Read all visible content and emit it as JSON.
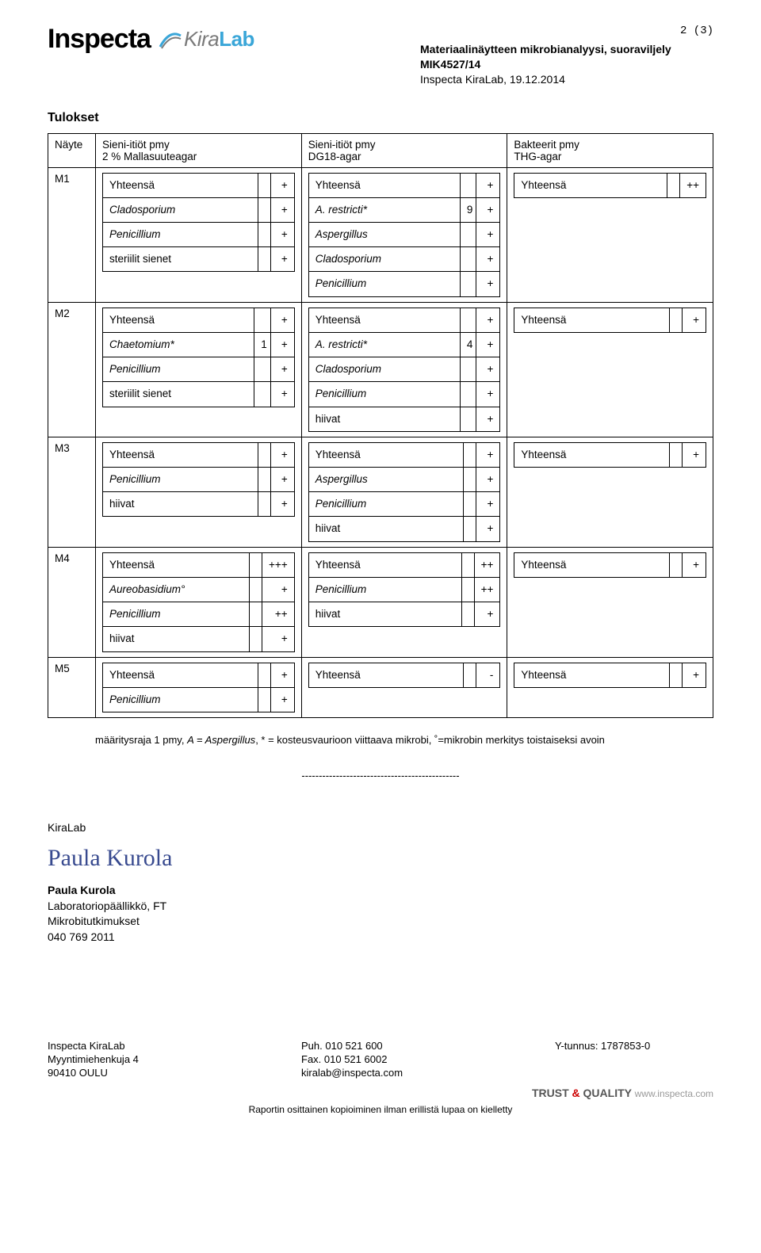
{
  "page_counter": "2 (3)",
  "header": {
    "title_line1": "Materiaalinäytteen mikrobianalyysi, suoraviljely",
    "title_line2": "MIK4527/14",
    "title_line3": "Inspecta KiraLab, 19.12.2014"
  },
  "logos": {
    "inspecta": "Inspecta",
    "kiralab_kira": "Kira",
    "kiralab_lab": "Lab"
  },
  "section_title": "Tulokset",
  "table": {
    "head": {
      "sample": "Näyte",
      "col1a": "Sieni-itiöt pmy",
      "col1b": "2 % Mallasuuteagar",
      "col2a": "Sieni-itiöt pmy",
      "col2b": "DG18-agar",
      "col3a": "Bakteerit pmy",
      "col3b": "THG-agar"
    },
    "rows": [
      {
        "id": "M1",
        "c1": [
          {
            "label": "Yhteensä",
            "val": "+"
          },
          {
            "label": "Cladosporium",
            "italic": true,
            "val": "+"
          },
          {
            "label": "Penicillium",
            "italic": true,
            "val": "+"
          },
          {
            "label": "steriilit sienet",
            "val": "+"
          }
        ],
        "c2": [
          {
            "label": "Yhteensä",
            "val": "+"
          },
          {
            "label": "A. restricti*",
            "italic": true,
            "cnt": "9",
            "val": "+"
          },
          {
            "label": "Aspergillus",
            "italic": true,
            "val": "+"
          },
          {
            "label": "Cladosporium",
            "italic": true,
            "val": "+"
          },
          {
            "label": "Penicillium",
            "italic": true,
            "val": "+"
          }
        ],
        "c3": [
          {
            "label": "Yhteensä",
            "val": "++"
          }
        ]
      },
      {
        "id": "M2",
        "c1": [
          {
            "label": "Yhteensä",
            "val": "+"
          },
          {
            "label": "Chaetomium*",
            "italic": true,
            "cnt": "1",
            "val": "+"
          },
          {
            "label": "Penicillium",
            "italic": true,
            "val": "+"
          },
          {
            "label": "steriilit sienet",
            "val": "+"
          }
        ],
        "c2": [
          {
            "label": "Yhteensä",
            "val": "+"
          },
          {
            "label": "A. restricti*",
            "italic": true,
            "cnt": "4",
            "val": "+"
          },
          {
            "label": "Cladosporium",
            "italic": true,
            "val": "+"
          },
          {
            "label": "Penicillium",
            "italic": true,
            "val": "+"
          },
          {
            "label": "hiivat",
            "val": "+"
          }
        ],
        "c3": [
          {
            "label": "Yhteensä",
            "val": "+"
          }
        ]
      },
      {
        "id": "M3",
        "c1": [
          {
            "label": "Yhteensä",
            "val": "+"
          },
          {
            "label": "Penicillium",
            "italic": true,
            "val": "+"
          },
          {
            "label": "hiivat",
            "val": "+"
          }
        ],
        "c2": [
          {
            "label": "Yhteensä",
            "val": "+"
          },
          {
            "label": "Aspergillus",
            "italic": true,
            "val": "+"
          },
          {
            "label": "Penicillium",
            "italic": true,
            "val": "+"
          },
          {
            "label": "hiivat",
            "val": "+"
          }
        ],
        "c3": [
          {
            "label": "Yhteensä",
            "val": "+"
          }
        ]
      },
      {
        "id": "M4",
        "c1": [
          {
            "label": "Yhteensä",
            "val": "+++"
          },
          {
            "label": "Aureobasidium°",
            "italic": true,
            "val": "+"
          },
          {
            "label": "Penicillium",
            "italic": true,
            "val": "++"
          },
          {
            "label": "hiivat",
            "val": "+"
          }
        ],
        "c2": [
          {
            "label": "Yhteensä",
            "val": "++"
          },
          {
            "label": "Penicillium",
            "italic": true,
            "val": "++"
          },
          {
            "label": "hiivat",
            "val": "+"
          }
        ],
        "c3": [
          {
            "label": "Yhteensä",
            "val": "+"
          }
        ]
      },
      {
        "id": "M5",
        "c1": [
          {
            "label": "Yhteensä",
            "val": "+"
          },
          {
            "label": "Penicillium",
            "italic": true,
            "val": "+"
          }
        ],
        "c2": [
          {
            "label": "Yhteensä",
            "val": "-"
          }
        ],
        "c3": [
          {
            "label": "Yhteensä",
            "val": "+"
          }
        ]
      }
    ]
  },
  "footnote": "määritysraja 1 pmy, A = Aspergillus, * = kosteusvaurioon viittaava mikrobi, ° =mikrobin merkitys toistaiseksi avoin",
  "divider": "----------------------------------------------",
  "sig": {
    "lab": "KiraLab",
    "signature": "Paula Kurola",
    "name": "Paula Kurola",
    "title": "Laboratoriopäällikkö, FT",
    "dept": "Mikrobitutkimukset",
    "phone": "040 769 2011"
  },
  "footer": {
    "left": [
      "Inspecta KiraLab",
      "Myyntimiehenkuja 4",
      "90410 OULU"
    ],
    "mid": [
      "Puh. 010 521 600",
      "Fax. 010 521 6002",
      "kiralab@inspecta.com"
    ],
    "right": [
      "Y-tunnus: 1787853-0"
    ],
    "trust": {
      "a": "TRUST ",
      "amp": "&",
      "b": " QUALITY",
      "url": " www.inspecta.com"
    },
    "copynote": "Raportin osittainen kopioiminen ilman erillistä lupaa on kielletty"
  }
}
